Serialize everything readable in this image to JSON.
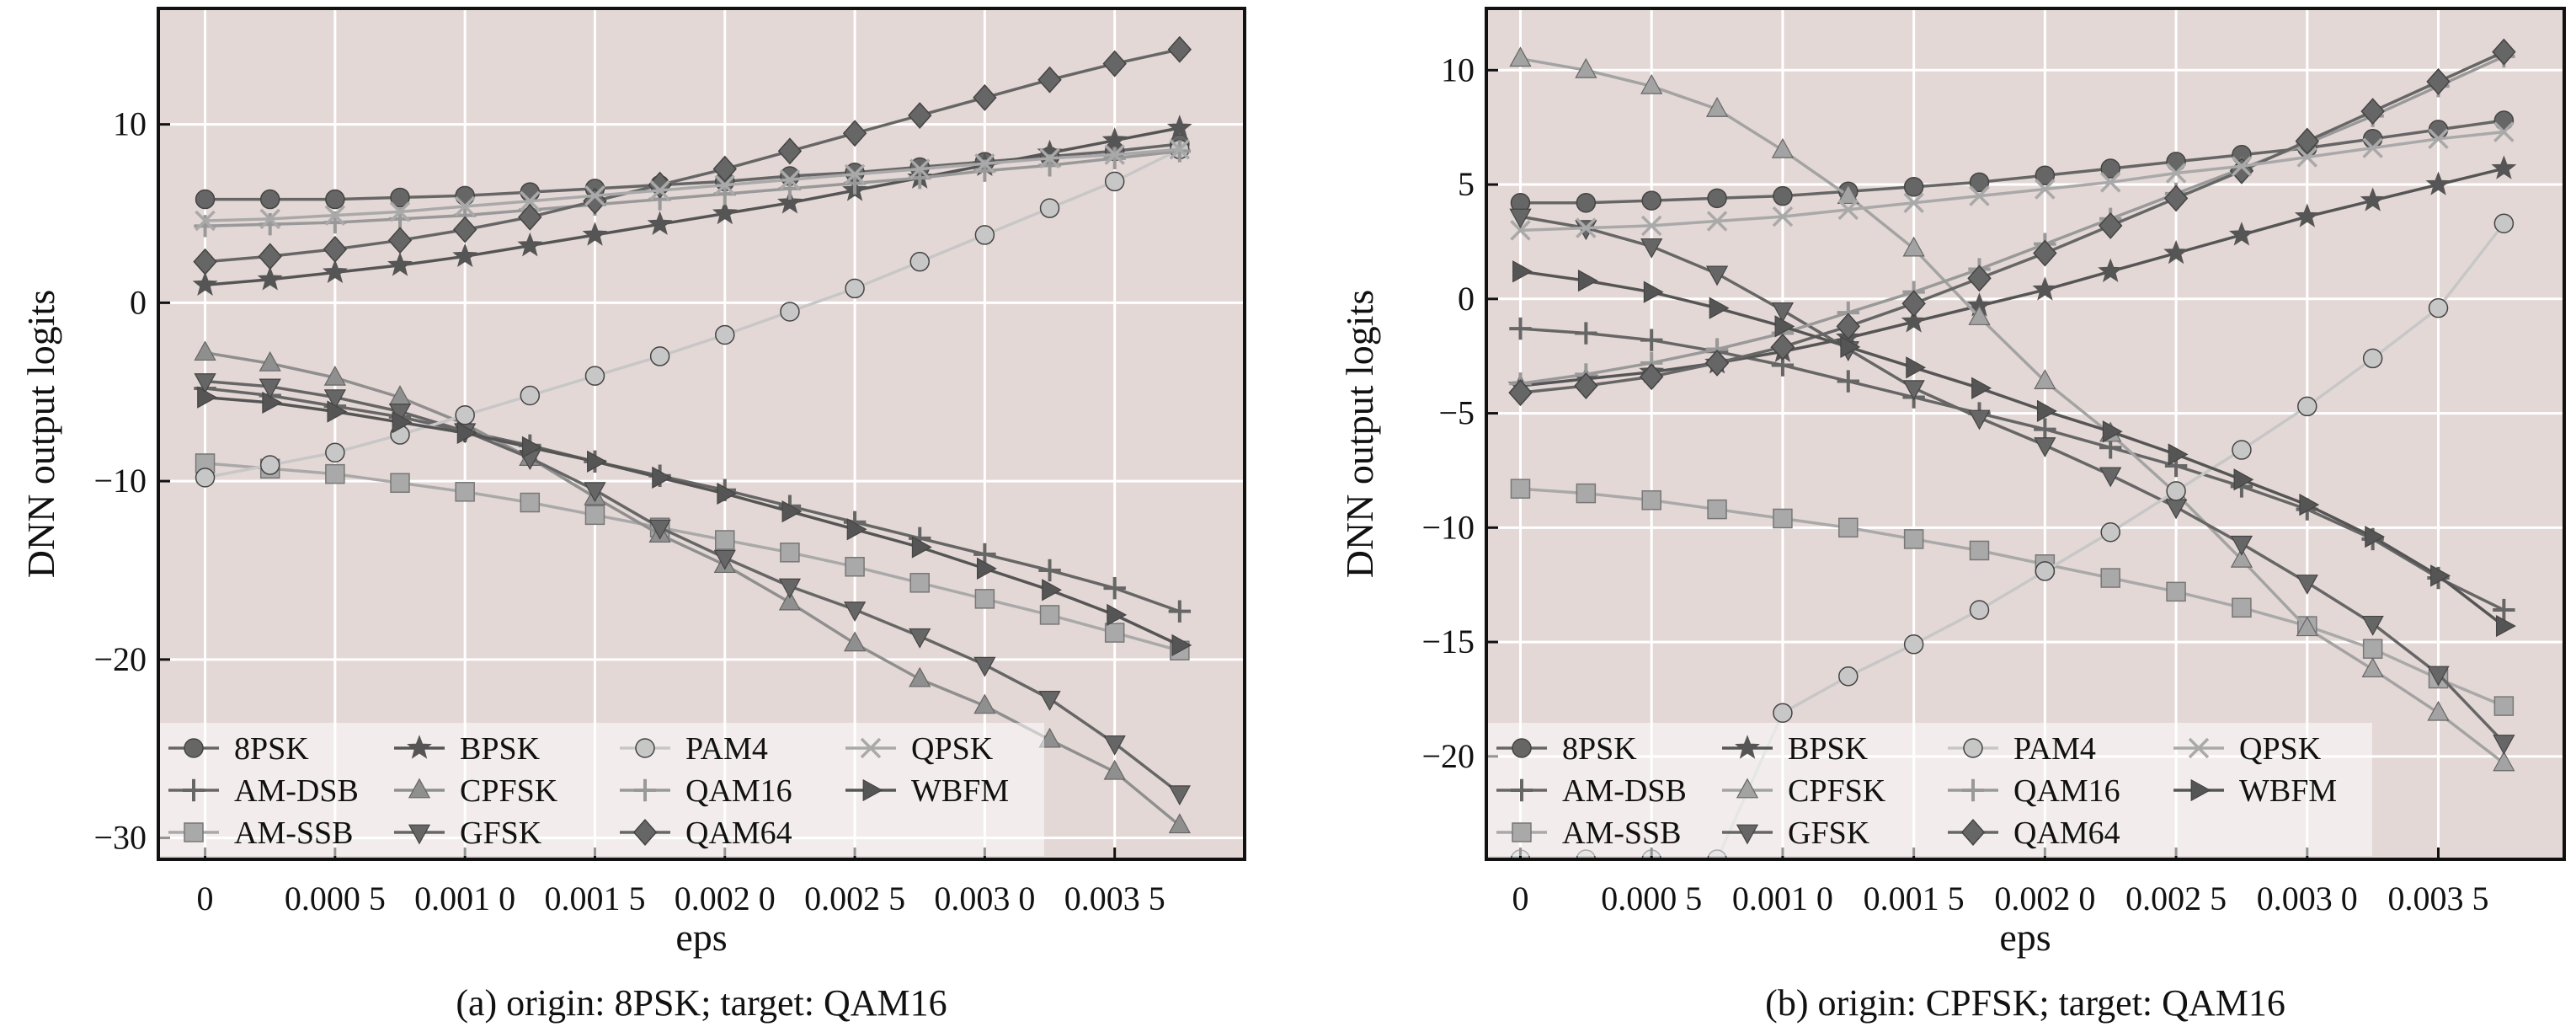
{
  "chart_data": [
    {
      "type": "line",
      "caption": "(a) origin: 8PSK; target: QAM16",
      "xlabel": "eps",
      "ylabel": "DNN output logits",
      "x_tick_labels": [
        "0",
        "0.000 5",
        "0.001 0",
        "0.001 5",
        "0.002 0",
        "0.002 5",
        "0.003 0",
        "0.003 5"
      ],
      "x_tick_values": [
        0,
        0.0005,
        0.001,
        0.0015,
        0.002,
        0.0025,
        0.003,
        0.0035
      ],
      "y_tick_labels": [
        "10",
        "0",
        "−10",
        "−20",
        "−30"
      ],
      "y_tick_values": [
        10,
        0,
        -10,
        -20,
        -30
      ],
      "xlim": [
        -0.00018,
        0.004
      ],
      "ylim": [
        -31.2,
        16.5
      ],
      "grid": true,
      "legend_position": "bottom-left",
      "x": [
        0,
        0.00025,
        0.0005,
        0.00075,
        0.001,
        0.00125,
        0.0015,
        0.00175,
        0.002,
        0.00225,
        0.0025,
        0.00275,
        0.003,
        0.00325,
        0.0035,
        0.00375
      ],
      "series": [
        {
          "name": "8PSK",
          "marker": "circle",
          "color": "#666666",
          "values": [
            5.8,
            5.8,
            5.8,
            5.9,
            6.0,
            6.2,
            6.4,
            6.6,
            6.8,
            7.1,
            7.3,
            7.6,
            7.9,
            8.2,
            8.5,
            8.9
          ]
        },
        {
          "name": "AM-DSB",
          "marker": "plus",
          "color": "#666666",
          "values": [
            -4.8,
            -5.2,
            -5.8,
            -6.4,
            -7.2,
            -8.0,
            -8.9,
            -9.7,
            -10.5,
            -11.4,
            -12.3,
            -13.2,
            -14.1,
            -15.0,
            -16.0,
            -17.3
          ]
        },
        {
          "name": "AM-SSB",
          "marker": "square",
          "color": "#a9a9a9",
          "values": [
            -9.0,
            -9.3,
            -9.6,
            -10.1,
            -10.6,
            -11.2,
            -11.9,
            -12.6,
            -13.3,
            -14.0,
            -14.8,
            -15.7,
            -16.6,
            -17.5,
            -18.5,
            -19.5
          ]
        },
        {
          "name": "BPSK",
          "marker": "star",
          "color": "#555555",
          "values": [
            1.0,
            1.3,
            1.7,
            2.1,
            2.6,
            3.2,
            3.8,
            4.4,
            5.0,
            5.6,
            6.3,
            7.0,
            7.7,
            8.4,
            9.1,
            9.8
          ]
        },
        {
          "name": "CPFSK",
          "marker": "triangle-up",
          "color": "#8f8f8f",
          "values": [
            -2.8,
            -3.4,
            -4.2,
            -5.3,
            -6.8,
            -8.7,
            -10.9,
            -13.0,
            -14.7,
            -16.8,
            -19.1,
            -21.1,
            -22.6,
            -24.5,
            -26.3,
            -29.3
          ]
        },
        {
          "name": "GFSK",
          "marker": "triangle-down",
          "color": "#666666",
          "values": [
            -4.4,
            -4.7,
            -5.3,
            -6.1,
            -7.2,
            -8.7,
            -10.5,
            -12.6,
            -14.3,
            -15.9,
            -17.2,
            -18.7,
            -20.3,
            -22.2,
            -24.7,
            -27.5
          ]
        },
        {
          "name": "PAM4",
          "marker": "circle",
          "color": "#c7c7c7",
          "values": [
            -9.8,
            -9.1,
            -8.4,
            -7.4,
            -6.3,
            -5.2,
            -4.1,
            -3.0,
            -1.8,
            -0.5,
            0.8,
            2.3,
            3.8,
            5.3,
            6.8,
            8.6
          ]
        },
        {
          "name": "QAM16",
          "marker": "plus",
          "color": "#999999",
          "values": [
            4.3,
            4.4,
            4.5,
            4.7,
            4.9,
            5.2,
            5.5,
            5.8,
            6.1,
            6.4,
            6.7,
            7.0,
            7.4,
            7.7,
            8.1,
            8.5
          ]
        },
        {
          "name": "QAM64",
          "marker": "diamond",
          "color": "#666666",
          "values": [
            2.3,
            2.6,
            3.0,
            3.5,
            4.1,
            4.8,
            5.7,
            6.6,
            7.5,
            8.5,
            9.5,
            10.5,
            11.5,
            12.5,
            13.4,
            14.2
          ]
        },
        {
          "name": "QPSK",
          "marker": "x",
          "color": "#a9a9a9",
          "values": [
            4.6,
            4.7,
            4.9,
            5.1,
            5.4,
            5.7,
            6.0,
            6.3,
            6.6,
            6.9,
            7.2,
            7.5,
            7.8,
            8.1,
            8.3,
            8.6
          ]
        },
        {
          "name": "WBFM",
          "marker": "triangle-right",
          "color": "#555555",
          "values": [
            -5.3,
            -5.6,
            -6.1,
            -6.7,
            -7.3,
            -8.1,
            -8.9,
            -9.8,
            -10.7,
            -11.7,
            -12.7,
            -13.7,
            -14.9,
            -16.1,
            -17.5,
            -19.2
          ]
        }
      ]
    },
    {
      "type": "line",
      "caption": "(b) origin: CPFSK; target: QAM16",
      "xlabel": "eps",
      "ylabel": "DNN output logits",
      "x_tick_labels": [
        "0",
        "0.000 5",
        "0.001 0",
        "0.001 5",
        "0.002 0",
        "0.002 5",
        "0.003 0",
        "0.003 5"
      ],
      "x_tick_values": [
        0,
        0.0005,
        0.001,
        0.0015,
        0.002,
        0.0025,
        0.003,
        0.0035
      ],
      "y_tick_labels": [
        "10",
        "5",
        "0",
        "−5",
        "−10",
        "−15",
        "−20"
      ],
      "y_tick_values": [
        10,
        5,
        0,
        -5,
        -10,
        -15,
        -20
      ],
      "xlim": [
        -0.00013,
        0.00398
      ],
      "ylim": [
        -24.5,
        12.7
      ],
      "grid": true,
      "legend_position": "bottom-left",
      "x": [
        0,
        0.00025,
        0.0005,
        0.00075,
        0.001,
        0.00125,
        0.0015,
        0.00175,
        0.002,
        0.00225,
        0.0025,
        0.00275,
        0.003,
        0.00325,
        0.0035,
        0.00375
      ],
      "series": [
        {
          "name": "8PSK",
          "marker": "circle",
          "color": "#666666",
          "values": [
            4.2,
            4.2,
            4.3,
            4.4,
            4.5,
            4.7,
            4.9,
            5.1,
            5.4,
            5.7,
            6.0,
            6.3,
            6.6,
            7.0,
            7.4,
            7.8
          ]
        },
        {
          "name": "AM-DSB",
          "marker": "plus",
          "color": "#666666",
          "values": [
            -1.3,
            -1.5,
            -1.8,
            -2.3,
            -2.9,
            -3.6,
            -4.3,
            -5.0,
            -5.7,
            -6.5,
            -7.3,
            -8.2,
            -9.2,
            -10.5,
            -12.2,
            -13.6
          ]
        },
        {
          "name": "AM-SSB",
          "marker": "square",
          "color": "#a9a9a9",
          "values": [
            -8.3,
            -8.5,
            -8.8,
            -9.2,
            -9.6,
            -10.0,
            -10.5,
            -11.0,
            -11.6,
            -12.2,
            -12.8,
            -13.5,
            -14.3,
            -15.3,
            -16.6,
            -17.8
          ]
        },
        {
          "name": "BPSK",
          "marker": "star",
          "color": "#555555",
          "values": [
            -3.8,
            -3.5,
            -3.2,
            -2.8,
            -2.3,
            -1.7,
            -1.0,
            -0.3,
            0.4,
            1.2,
            2.0,
            2.8,
            3.6,
            4.3,
            5.0,
            5.7
          ]
        },
        {
          "name": "CPFSK",
          "marker": "triangle-up",
          "color": "#a3a3a3",
          "values": [
            10.5,
            10.0,
            9.3,
            8.3,
            6.5,
            4.5,
            2.2,
            -0.8,
            -3.6,
            -5.9,
            -8.5,
            -11.4,
            -14.4,
            -16.2,
            -18.1,
            -20.3
          ]
        },
        {
          "name": "GFSK",
          "marker": "triangle-down",
          "color": "#666666",
          "values": [
            3.6,
            3.1,
            2.3,
            1.1,
            -0.5,
            -2.2,
            -3.9,
            -5.2,
            -6.4,
            -7.7,
            -9.1,
            -10.7,
            -12.4,
            -14.2,
            -16.4,
            -19.4
          ]
        },
        {
          "name": "PAM4",
          "marker": "circle",
          "color": "#c7c7c7",
          "values": [
            -24.5,
            -24.5,
            -24.5,
            -24.5,
            -18.1,
            -16.5,
            -15.1,
            -13.6,
            -11.9,
            -10.2,
            -8.4,
            -6.6,
            -4.7,
            -2.6,
            -0.4,
            3.3
          ]
        },
        {
          "name": "QAM16",
          "marker": "plus",
          "color": "#999999",
          "values": [
            -3.7,
            -3.3,
            -2.8,
            -2.2,
            -1.5,
            -0.6,
            0.3,
            1.3,
            2.4,
            3.5,
            4.6,
            5.7,
            6.8,
            8.0,
            9.3,
            10.6
          ]
        },
        {
          "name": "QAM64",
          "marker": "diamond",
          "color": "#666666",
          "values": [
            -4.1,
            -3.8,
            -3.4,
            -2.8,
            -2.1,
            -1.2,
            -0.2,
            0.9,
            2.0,
            3.2,
            4.4,
            5.6,
            6.9,
            8.2,
            9.5,
            10.8
          ]
        },
        {
          "name": "QPSK",
          "marker": "x",
          "color": "#a9a9a9",
          "values": [
            3.0,
            3.1,
            3.2,
            3.4,
            3.6,
            3.9,
            4.2,
            4.5,
            4.8,
            5.1,
            5.5,
            5.8,
            6.2,
            6.6,
            7.0,
            7.3
          ]
        },
        {
          "name": "WBFM",
          "marker": "triangle-right",
          "color": "#555555",
          "values": [
            1.2,
            0.8,
            0.3,
            -0.4,
            -1.2,
            -2.1,
            -3.0,
            -3.9,
            -4.9,
            -5.8,
            -6.8,
            -7.9,
            -9.0,
            -10.4,
            -12.1,
            -14.3
          ]
        }
      ]
    }
  ]
}
